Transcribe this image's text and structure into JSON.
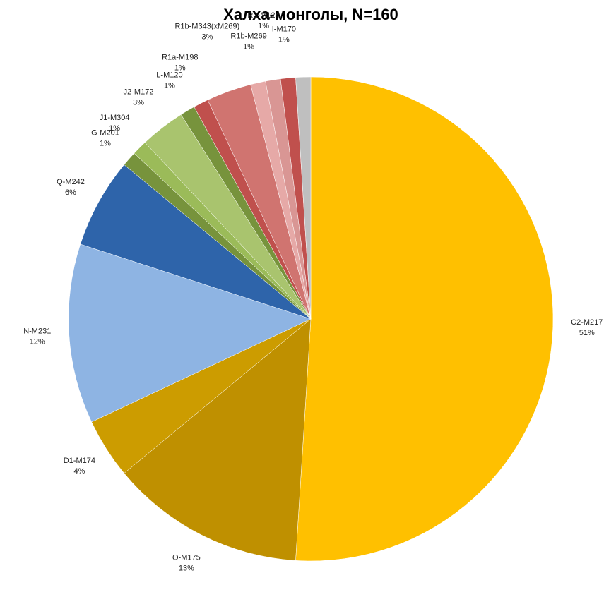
{
  "chart_data": {
    "type": "pie",
    "title": "Халха-монголы, N=160",
    "categories": [
      "C2-M217",
      "O-M175",
      "D1-M174",
      "N-M231",
      "Q-M242",
      "G-M201",
      "J1-M304",
      "J2-M172",
      "L-M120",
      "R1a-M198",
      "R1b-M343(xM269)",
      "R1b-M269",
      "R2-M124",
      "I-M170",
      null
    ],
    "values": [
      51,
      13,
      4,
      12,
      6,
      1,
      1,
      3,
      1,
      1,
      3,
      1,
      1,
      1,
      1
    ],
    "value_labels": [
      "51%",
      "13%",
      "4%",
      "12%",
      "6%",
      "1%",
      "1%",
      "3%",
      "1%",
      "1%",
      "3%",
      "1%",
      "1%",
      "1%",
      null
    ],
    "colors": [
      "#FFC000",
      "#BF9000",
      "#CC9C00",
      "#8EB4E3",
      "#2E64AA",
      "#77933C",
      "#9BBB59",
      "#A9C46E",
      "#77933C",
      "#C0504D",
      "#D07470",
      "#E6A9A7",
      "#D99694",
      "#C0504D",
      "#BFBFBF"
    ]
  }
}
